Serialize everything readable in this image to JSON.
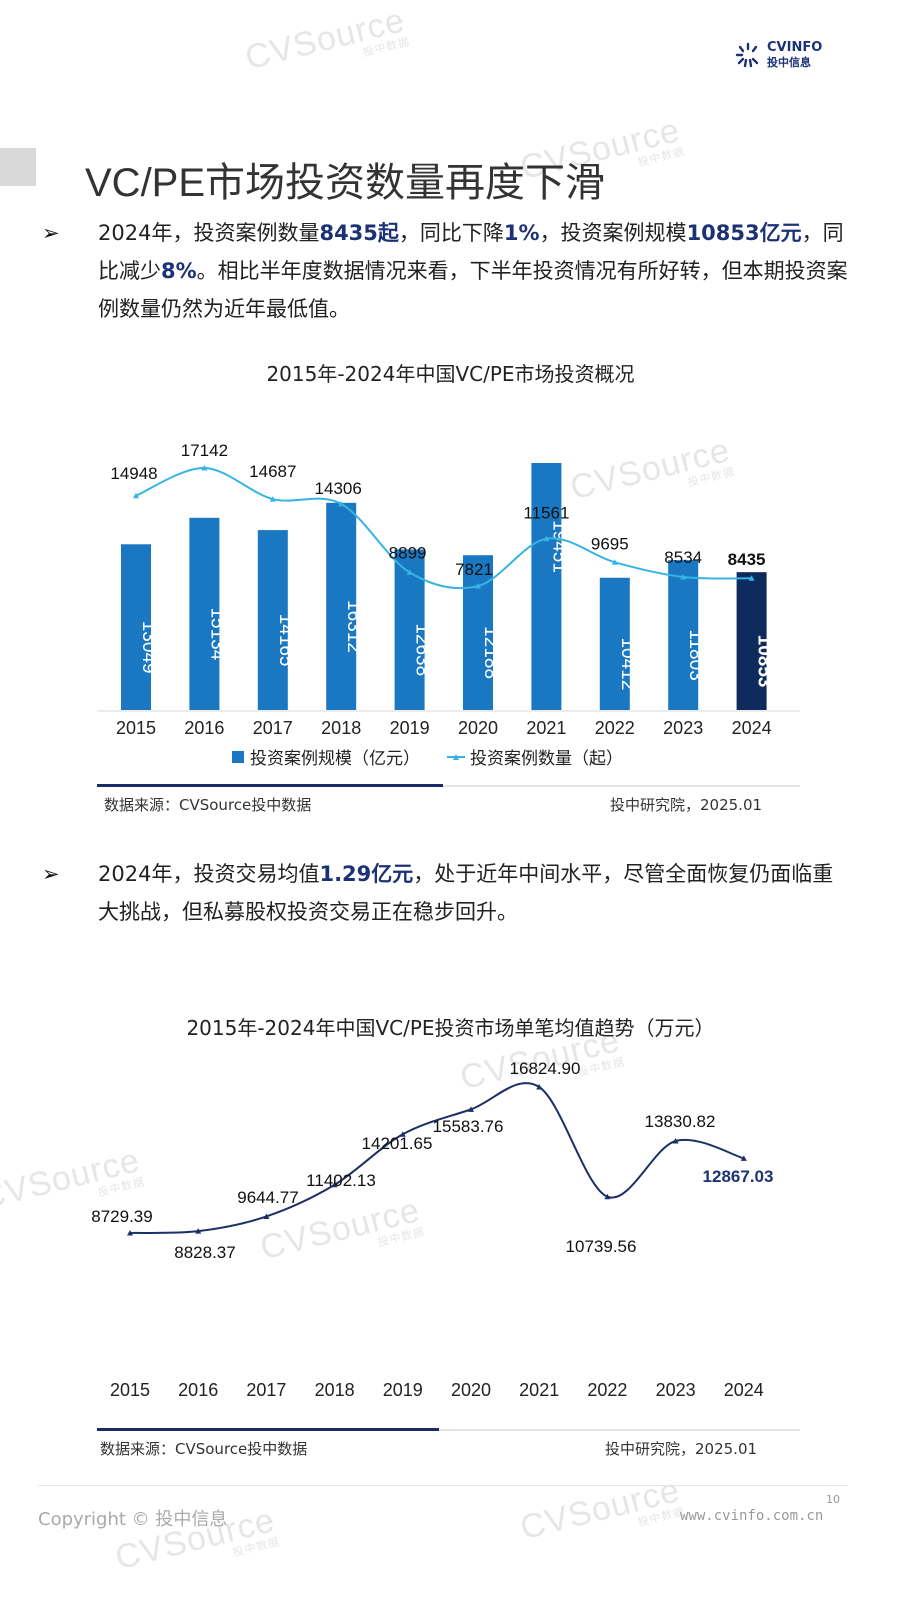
{
  "logo": {
    "en": "CVINFO",
    "cn": "投中信息"
  },
  "watermark": {
    "text": "CVSource",
    "sub": "投中数据"
  },
  "page_title": "VC/PE市场投资数量再度下滑",
  "para1": {
    "p1": "2024年，投资案例数量",
    "b1": "8435起",
    "p2": "，同比下降",
    "b2": "1%",
    "p3": "，投资案例规模",
    "b3": "10853亿元",
    "p4": "，同比减少",
    "b4": "8%",
    "p5": "。相比半年度数据情况来看，下半年投资情况有所好转，但本期投资案例数量仍然为近年最低值。"
  },
  "para2": {
    "p1": "2024年，投资交易均值",
    "b1": "1.29亿元",
    "p2": "，处于近年中间水平，尽管全面恢复仍面临重大挑战，但私募股权投资交易正在稳步回升。"
  },
  "source1": {
    "left": "数据来源：CVSource投中数据",
    "right": "投中研究院，2025.01"
  },
  "source2": {
    "left": "数据来源：CVSource投中数据",
    "right": "投中研究院，2025.01"
  },
  "footer": {
    "copyright": "Copyright © 投中信息",
    "page": "10",
    "url": "www.cvinfo.com.cn"
  },
  "colors": {
    "bar": "#1a78c2",
    "bar_highlight": "#0f2b5e",
    "line1": "#35b4e4",
    "line2": "#1c2f66",
    "emph": "#1c3275"
  },
  "chart_data": [
    {
      "type": "bar+line",
      "title": "2015年-2024年中国VC/PE市场投资概况",
      "categories": [
        "2015",
        "2016",
        "2017",
        "2018",
        "2019",
        "2020",
        "2021",
        "2022",
        "2023",
        "2024"
      ],
      "series": [
        {
          "name": "投资案例规模（亿元）",
          "type": "bar",
          "values": [
            13049,
            15134,
            14165,
            16312,
            12638,
            12188,
            19451,
            10412,
            11803,
            10853
          ]
        },
        {
          "name": "投资案例数量（起）",
          "type": "line",
          "values": [
            14948,
            17142,
            14687,
            14306,
            8899,
            7821,
            11561,
            9695,
            8534,
            8435
          ]
        }
      ],
      "legend": "bottom",
      "grid": false
    },
    {
      "type": "line",
      "title": "2015年-2024年中国VC/PE投资市场单笔均值趋势（万元）",
      "categories": [
        "2015",
        "2016",
        "2017",
        "2018",
        "2019",
        "2020",
        "2021",
        "2022",
        "2023",
        "2024"
      ],
      "values": [
        "8729.39",
        "8828.37",
        "9644.77",
        "11402.13",
        "14201.65",
        "15583.76",
        "16824.90",
        "10739.56",
        "13830.82",
        "12867.03"
      ],
      "legend": "none",
      "grid": false
    }
  ]
}
